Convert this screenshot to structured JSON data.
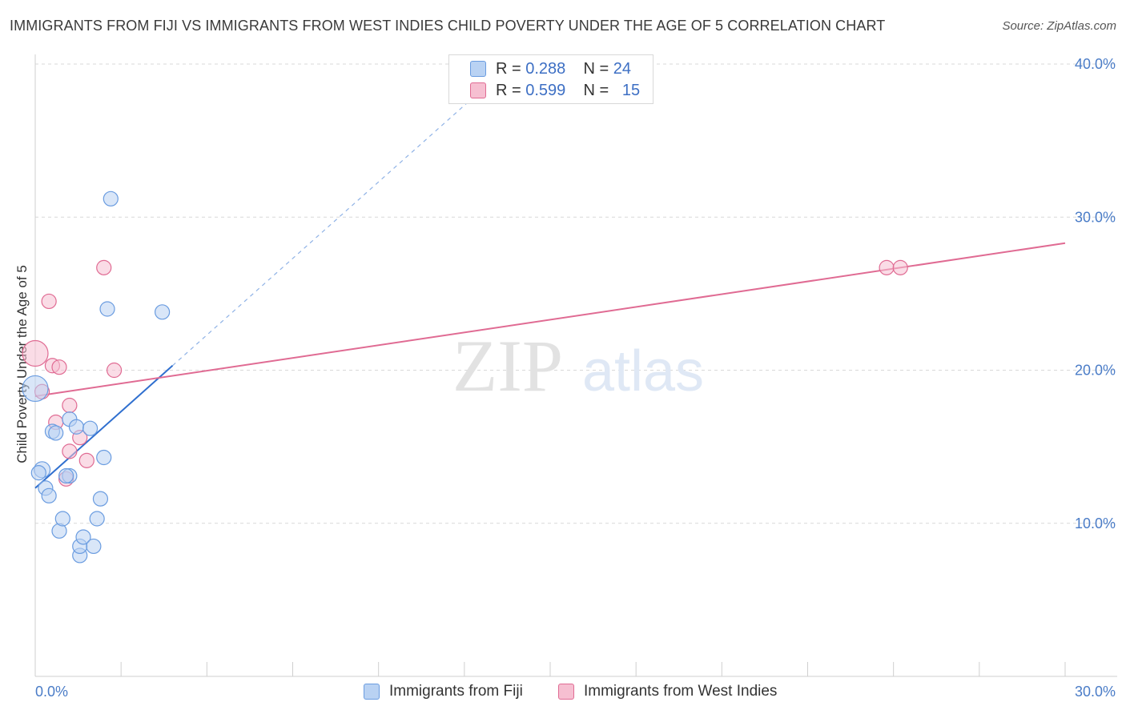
{
  "title": "IMMIGRANTS FROM FIJI VS IMMIGRANTS FROM WEST INDIES CHILD POVERTY UNDER THE AGE OF 5 CORRELATION CHART",
  "source": "Source: ZipAtlas.com",
  "watermark": {
    "zip": "ZIP",
    "atlas": "atlas"
  },
  "colors": {
    "fiji": "#6a9ce0",
    "fiji_fill": "#b9d2f3",
    "west_indies": "#e06b93",
    "west_indies_fill": "#f6bfd1",
    "tick": "#4a7cc7"
  },
  "legend": {
    "fiji": {
      "r_label": "R = ",
      "r_value": "0.288",
      "n_label": "N = ",
      "n_value": "24",
      "name": "Immigrants from Fiji"
    },
    "west_indies": {
      "r_label": "R = ",
      "r_value": "0.599",
      "n_label": "N = ",
      "n_value": "15",
      "name": "Immigrants from West Indies"
    }
  },
  "chart_data": {
    "type": "scatter",
    "title": "IMMIGRANTS FROM FIJI VS IMMIGRANTS FROM WEST INDIES CHILD POVERTY UNDER THE AGE OF 5 CORRELATION CHART",
    "xlabel": "",
    "ylabel": "Child Poverty Under the Age of 5",
    "xlim": [
      0,
      30
    ],
    "ylim": [
      0,
      40
    ],
    "x_tick_labels": [
      {
        "value": 0,
        "label": "0.0%"
      },
      {
        "value": 30,
        "label": "30.0%"
      }
    ],
    "y_tick_labels": [
      {
        "value": 10,
        "label": "10.0%"
      },
      {
        "value": 20,
        "label": "20.0%"
      },
      {
        "value": 30,
        "label": "30.0%"
      },
      {
        "value": 40,
        "label": "40.0%"
      }
    ],
    "series": [
      {
        "name": "Immigrants from Fiji",
        "points": [
          [
            0.0,
            18.8,
            16
          ],
          [
            0.2,
            13.5,
            10
          ],
          [
            0.3,
            12.3,
            9
          ],
          [
            0.4,
            11.8,
            9
          ],
          [
            0.5,
            16.0,
            9
          ],
          [
            0.6,
            15.9,
            9
          ],
          [
            0.7,
            9.5,
            9
          ],
          [
            0.8,
            10.3,
            9
          ],
          [
            1.0,
            16.8,
            9
          ],
          [
            1.0,
            13.1,
            9
          ],
          [
            1.2,
            16.3,
            9
          ],
          [
            1.3,
            7.9,
            9
          ],
          [
            1.3,
            8.5,
            9
          ],
          [
            1.4,
            9.1,
            9
          ],
          [
            1.6,
            16.2,
            9
          ],
          [
            1.7,
            8.5,
            9
          ],
          [
            1.8,
            10.3,
            9
          ],
          [
            1.9,
            11.6,
            9
          ],
          [
            2.0,
            14.3,
            9
          ],
          [
            2.1,
            24.0,
            9
          ],
          [
            2.2,
            31.2,
            9
          ],
          [
            3.7,
            23.8,
            9
          ],
          [
            0.1,
            13.3,
            9
          ],
          [
            0.9,
            13.1,
            9
          ]
        ],
        "trend_solid": [
          [
            0.0,
            12.3
          ],
          [
            4.0,
            20.3
          ]
        ],
        "trend_dashed": [
          [
            4.0,
            20.3
          ],
          [
            14.0,
            40.3
          ]
        ]
      },
      {
        "name": "Immigrants from West Indies",
        "points": [
          [
            0.0,
            21.1,
            16
          ],
          [
            0.2,
            18.6,
            9
          ],
          [
            0.4,
            24.5,
            9
          ],
          [
            0.5,
            20.3,
            9
          ],
          [
            0.7,
            20.2,
            9
          ],
          [
            0.6,
            16.6,
            9
          ],
          [
            0.9,
            12.9,
            9
          ],
          [
            1.0,
            14.7,
            9
          ],
          [
            1.0,
            17.7,
            9
          ],
          [
            1.3,
            15.6,
            9
          ],
          [
            1.5,
            14.1,
            9
          ],
          [
            2.0,
            26.7,
            9
          ],
          [
            2.3,
            20.0,
            9
          ],
          [
            24.8,
            26.7,
            9
          ],
          [
            25.2,
            26.7,
            9
          ]
        ],
        "trend_solid": [
          [
            0.0,
            18.3
          ],
          [
            30.0,
            28.3
          ]
        ]
      }
    ]
  }
}
